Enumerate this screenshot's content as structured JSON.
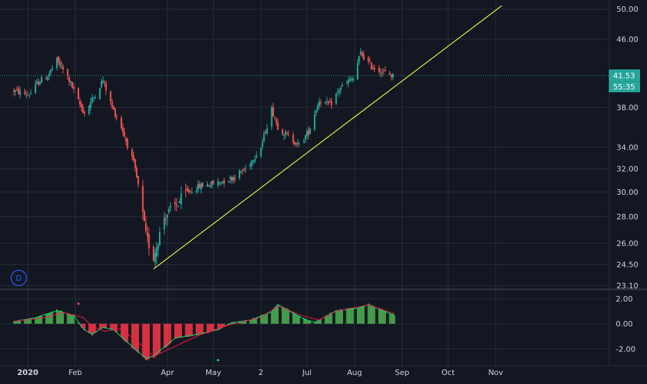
{
  "colors": {
    "background": "#131722",
    "grid": "#2a2e39",
    "axis_text": "#d1d4dc",
    "up": "#26a69a",
    "down": "#ef5350",
    "trendline": "#f5f542",
    "last_price": "#26a69a",
    "macd_line": "#00e676",
    "signal_line": "#ff1744",
    "hist_pos": "#4caf50",
    "hist_neg": "#f23645"
  },
  "toolbar": {
    "interval_label": "D"
  },
  "chart_data": [
    {
      "type": "candlestick",
      "title": "",
      "price_axis": {
        "ticks": [
          "50.00",
          "46.00",
          "38.00",
          "34.00",
          "32.00",
          "30.00",
          "28.00",
          "26.00",
          "24.50",
          "23.10"
        ],
        "scale": "log",
        "range": [
          23.1,
          51
        ]
      },
      "last_price": {
        "value": "41.53",
        "countdown": "55:35"
      },
      "time_axis": {
        "labels": [
          "2020",
          "Feb",
          "Apr",
          "May",
          "2",
          "Jul",
          "Aug",
          "Sep",
          "Oct",
          "Nov"
        ]
      },
      "trendline": {
        "from": {
          "date": "2020-03-23",
          "price": 24.2
        },
        "to": {
          "date": "2020-11-05",
          "price": 50.5
        }
      },
      "anchors": [
        [
          "2019-12-23",
          39.8
        ],
        [
          "2020-01-02",
          39.4
        ],
        [
          "2020-01-08",
          40.8
        ],
        [
          "2020-01-14",
          41.5
        ],
        [
          "2020-01-20",
          43.3
        ],
        [
          "2020-01-27",
          41.4
        ],
        [
          "2020-02-03",
          38.6
        ],
        [
          "2020-02-07",
          37.4
        ],
        [
          "2020-02-12",
          38.8
        ],
        [
          "2020-02-19",
          41.0
        ],
        [
          "2020-02-25",
          38.0
        ],
        [
          "2020-03-02",
          36.0
        ],
        [
          "2020-03-06",
          34.2
        ],
        [
          "2020-03-10",
          32.5
        ],
        [
          "2020-03-13",
          30.5
        ],
        [
          "2020-03-18",
          26.5
        ],
        [
          "2020-03-23",
          25.0
        ],
        [
          "2020-03-30",
          28.0
        ],
        [
          "2020-04-06",
          28.8
        ],
        [
          "2020-04-14",
          30.0
        ],
        [
          "2020-04-22",
          30.5
        ],
        [
          "2020-05-04",
          30.8
        ],
        [
          "2020-05-13",
          31.2
        ],
        [
          "2020-05-22",
          32.0
        ],
        [
          "2020-06-01",
          34.0
        ],
        [
          "2020-06-08",
          37.8
        ],
        [
          "2020-06-12",
          36.0
        ],
        [
          "2020-06-19",
          35.0
        ],
        [
          "2020-06-26",
          34.2
        ],
        [
          "2020-07-02",
          35.5
        ],
        [
          "2020-07-09",
          38.8
        ],
        [
          "2020-07-16",
          38.2
        ],
        [
          "2020-07-23",
          40.2
        ],
        [
          "2020-07-31",
          41.2
        ],
        [
          "2020-08-05",
          44.2
        ],
        [
          "2020-08-12",
          42.6
        ],
        [
          "2020-08-19",
          42.0
        ],
        [
          "2020-08-26",
          41.5
        ]
      ]
    },
    {
      "type": "histogram",
      "title": "",
      "axis_ticks": [
        "2.00",
        "0.00",
        "-2.00"
      ],
      "range": [
        -3.2,
        2.6
      ],
      "hist_anchors": [
        [
          "2019-12-23",
          0.2
        ],
        [
          "2020-01-06",
          0.5
        ],
        [
          "2020-01-20",
          1.1
        ],
        [
          "2020-01-31",
          0.7
        ],
        [
          "2020-02-06",
          -0.4
        ],
        [
          "2020-02-12",
          -0.9
        ],
        [
          "2020-02-19",
          -0.3
        ],
        [
          "2020-02-26",
          -0.5
        ],
        [
          "2020-03-09",
          -1.9
        ],
        [
          "2020-03-18",
          -2.9
        ],
        [
          "2020-03-23",
          -2.7
        ],
        [
          "2020-04-06",
          -1.2
        ],
        [
          "2020-04-20",
          -0.9
        ],
        [
          "2020-05-04",
          -0.5
        ],
        [
          "2020-05-13",
          0.1
        ],
        [
          "2020-05-25",
          0.3
        ],
        [
          "2020-06-08",
          1.0
        ],
        [
          "2020-06-12",
          1.6
        ],
        [
          "2020-06-29",
          0.4
        ],
        [
          "2020-07-06",
          0.1
        ],
        [
          "2020-07-20",
          1.1
        ],
        [
          "2020-08-03",
          1.3
        ],
        [
          "2020-08-10",
          1.6
        ],
        [
          "2020-08-27",
          0.7
        ]
      ],
      "signal_anchors": [
        [
          "2019-12-23",
          0.2
        ],
        [
          "2020-01-13",
          0.5
        ],
        [
          "2020-01-24",
          0.9
        ],
        [
          "2020-02-06",
          0.5
        ],
        [
          "2020-02-12",
          -0.2
        ],
        [
          "2020-02-20",
          -0.6
        ],
        [
          "2020-03-02",
          -0.4
        ],
        [
          "2020-03-13",
          -1.5
        ],
        [
          "2020-03-23",
          -2.6
        ],
        [
          "2020-04-06",
          -1.8
        ],
        [
          "2020-04-22",
          -0.9
        ],
        [
          "2020-05-11",
          -0.1
        ],
        [
          "2020-06-01",
          0.5
        ],
        [
          "2020-06-12",
          1.4
        ],
        [
          "2020-06-29",
          0.6
        ],
        [
          "2020-07-09",
          0.3
        ],
        [
          "2020-07-20",
          1.0
        ],
        [
          "2020-08-10",
          1.5
        ],
        [
          "2020-08-27",
          0.8
        ]
      ],
      "dots": [
        {
          "date": "2020-02-03",
          "value": 1.6,
          "color": "down"
        },
        {
          "date": "2020-05-04",
          "value": -2.9,
          "color": "macd"
        }
      ]
    }
  ]
}
